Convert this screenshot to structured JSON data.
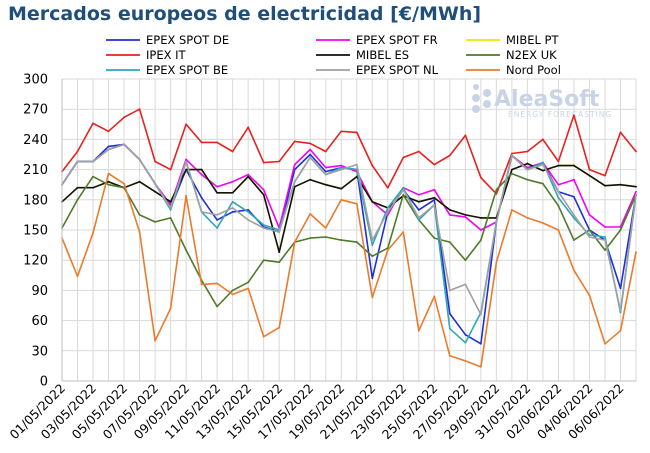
{
  "chart_data": {
    "type": "line",
    "title": "Mercados europeos de electricidad [€/MWh]",
    "xlabel": "",
    "ylabel": "",
    "ylim": [
      0,
      300
    ],
    "yticks": [
      0,
      30,
      60,
      90,
      120,
      150,
      180,
      210,
      240,
      270,
      300
    ],
    "grid": true,
    "legend_position": "top",
    "x": [
      "01/05/2022",
      "02/05/2022",
      "03/05/2022",
      "04/05/2022",
      "05/05/2022",
      "06/05/2022",
      "07/05/2022",
      "08/05/2022",
      "09/05/2022",
      "10/05/2022",
      "11/05/2022",
      "12/05/2022",
      "13/05/2022",
      "14/05/2022",
      "15/05/2022",
      "16/05/2022",
      "17/05/2022",
      "18/05/2022",
      "19/05/2022",
      "20/05/2022",
      "21/05/2022",
      "22/05/2022",
      "23/05/2022",
      "24/05/2022",
      "25/05/2022",
      "26/05/2022",
      "27/05/2022",
      "28/05/2022",
      "29/05/2022",
      "30/05/2022",
      "31/05/2022",
      "01/06/2022",
      "02/06/2022",
      "03/06/2022",
      "04/06/2022",
      "05/06/2022",
      "06/06/2022",
      "07/06/2022"
    ],
    "xtick_labels": [
      "01/05/2022",
      "03/05/2022",
      "05/05/2022",
      "07/05/2022",
      "09/05/2022",
      "11/05/2022",
      "13/05/2022",
      "15/05/2022",
      "17/05/2022",
      "19/05/2022",
      "21/05/2022",
      "23/05/2022",
      "25/05/2022",
      "27/05/2022",
      "29/05/2022",
      "31/05/2022",
      "02/06/2022",
      "04/06/2022",
      "06/06/2022"
    ],
    "series": [
      {
        "name": "EPEX SPOT DE",
        "color": "#1f2fd8",
        "values": [
          195,
          218,
          218,
          233,
          235,
          220,
          196,
          172,
          210,
          182,
          160,
          168,
          170,
          153,
          148,
          210,
          225,
          208,
          212,
          210,
          102,
          168,
          190,
          170,
          180,
          67,
          46,
          37,
          158,
          224,
          210,
          217,
          188,
          183,
          150,
          140,
          92,
          185
        ]
      },
      {
        "name": "EPEX SPOT FR",
        "color": "#f200f2",
        "values": [
          195,
          218,
          218,
          230,
          235,
          220,
          196,
          175,
          220,
          205,
          193,
          198,
          205,
          190,
          152,
          215,
          230,
          212,
          214,
          208,
          178,
          165,
          192,
          185,
          190,
          165,
          163,
          150,
          158,
          224,
          212,
          217,
          195,
          200,
          165,
          153,
          153,
          188
        ]
      },
      {
        "name": "MIBEL PT",
        "color": "#e8e800",
        "values": [
          178,
          192,
          192,
          198,
          192,
          198,
          188,
          178,
          210,
          210,
          187,
          187,
          203,
          185,
          128,
          193,
          200,
          195,
          191,
          203,
          178,
          172,
          184,
          178,
          182,
          170,
          165,
          162,
          162,
          210,
          216,
          209,
          214,
          214,
          204,
          194,
          195,
          193
        ]
      },
      {
        "name": "IPEX IT",
        "color": "#e8211e",
        "values": [
          208,
          228,
          256,
          248,
          262,
          270,
          218,
          210,
          255,
          237,
          237,
          228,
          252,
          217,
          218,
          238,
          236,
          228,
          248,
          247,
          214,
          192,
          222,
          228,
          215,
          224,
          244,
          202,
          186,
          226,
          228,
          240,
          218,
          264,
          210,
          204,
          247,
          228
        ]
      },
      {
        "name": "MIBEL ES",
        "color": "#111111",
        "values": [
          178,
          192,
          192,
          198,
          192,
          198,
          188,
          178,
          210,
          210,
          187,
          187,
          203,
          185,
          128,
          193,
          200,
          195,
          191,
          203,
          178,
          172,
          184,
          178,
          182,
          170,
          165,
          162,
          162,
          210,
          216,
          209,
          214,
          214,
          204,
          194,
          195,
          193
        ]
      },
      {
        "name": "N2EX UK",
        "color": "#4f7a2a",
        "values": [
          152,
          180,
          203,
          195,
          192,
          165,
          158,
          162,
          130,
          100,
          74,
          90,
          98,
          120,
          118,
          138,
          142,
          143,
          140,
          138,
          124,
          132,
          185,
          160,
          142,
          138,
          120,
          140,
          190,
          206,
          200,
          196,
          174,
          140,
          150,
          130,
          150,
          185
        ]
      },
      {
        "name": "EPEX SPOT BE",
        "color": "#2ea6b8",
        "values": [
          195,
          218,
          218,
          230,
          235,
          220,
          196,
          170,
          218,
          168,
          152,
          178,
          168,
          155,
          150,
          198,
          222,
          205,
          212,
          210,
          135,
          172,
          192,
          160,
          175,
          52,
          38,
          68,
          158,
          224,
          210,
          217,
          182,
          162,
          145,
          143,
          68,
          185
        ]
      },
      {
        "name": "EPEX SPOT NL",
        "color": "#a0a0a0",
        "values": [
          195,
          218,
          218,
          230,
          235,
          220,
          196,
          172,
          218,
          168,
          165,
          172,
          160,
          152,
          148,
          198,
          222,
          205,
          210,
          215,
          140,
          168,
          190,
          162,
          175,
          90,
          96,
          66,
          158,
          224,
          210,
          215,
          188,
          165,
          143,
          140,
          70,
          185
        ]
      },
      {
        "name": "Nord Pool",
        "color": "#ea7b2b",
        "values": [
          142,
          104,
          147,
          206,
          196,
          148,
          40,
          72,
          184,
          96,
          97,
          86,
          92,
          44,
          53,
          138,
          166,
          152,
          180,
          176,
          83,
          130,
          148,
          50,
          84,
          25,
          20,
          14,
          118,
          170,
          162,
          157,
          150,
          110,
          85,
          37,
          50,
          128
        ]
      }
    ]
  },
  "watermark": {
    "name": "AleaSoft",
    "tagline": "ENERGY FORECASTING"
  }
}
